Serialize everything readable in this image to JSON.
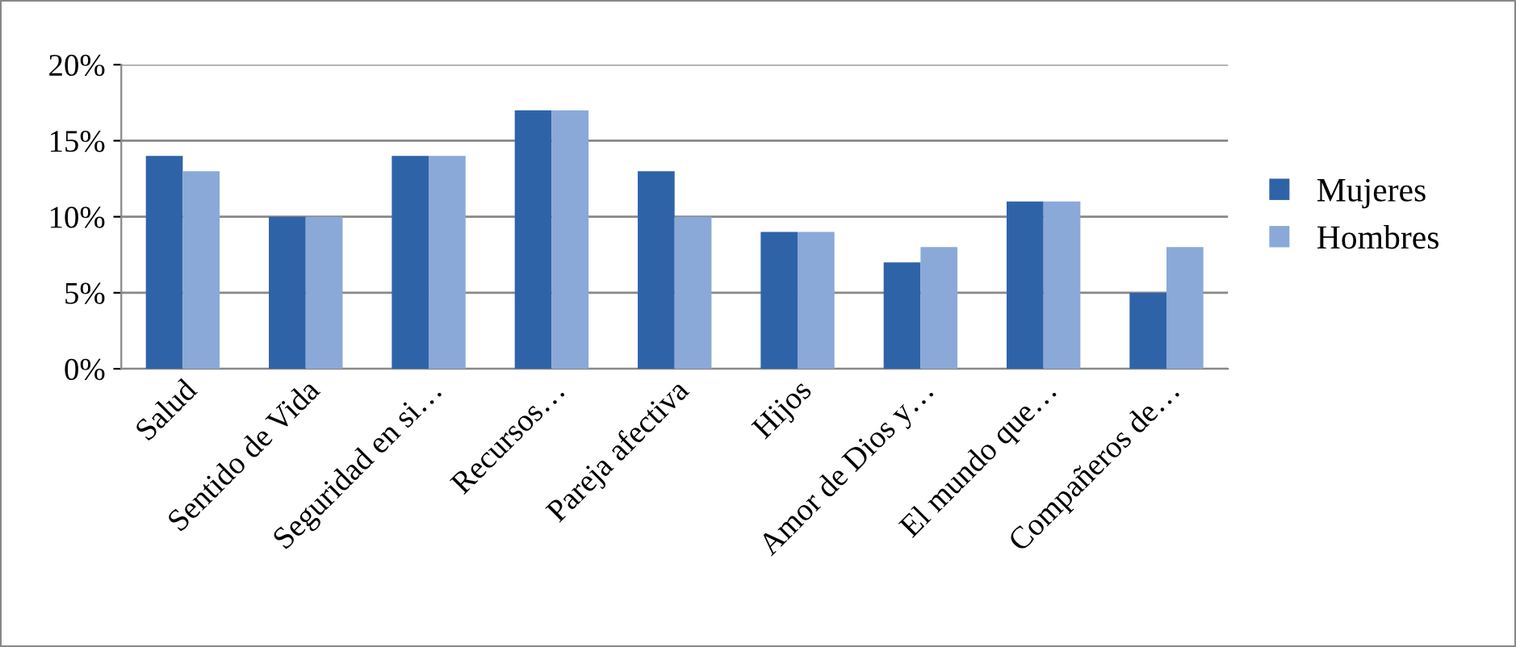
{
  "chart_data": {
    "type": "bar",
    "categories": [
      "Salud",
      "Sentido de Vida",
      "Seguridad en si…",
      "Recursos…",
      "Pareja afectiva",
      "Hijos",
      "Amor de Dios y…",
      "El mundo que…",
      "Compañeros de…"
    ],
    "series": [
      {
        "name": "Mujeres",
        "color": "#2f63a8",
        "values": [
          14,
          10,
          14,
          17,
          13,
          9,
          7,
          11,
          5
        ]
      },
      {
        "name": "Hombres",
        "color": "#8aa9d8",
        "values": [
          13,
          10,
          14,
          17,
          10,
          9,
          8,
          11,
          8
        ]
      }
    ],
    "ylim": [
      0,
      20
    ],
    "yticks": [
      {
        "value": 0,
        "label": "0%"
      },
      {
        "value": 5,
        "label": "5%"
      },
      {
        "value": 10,
        "label": "10%"
      },
      {
        "value": 15,
        "label": "15%"
      },
      {
        "value": 20,
        "label": "20%"
      }
    ],
    "grid": "y",
    "legend": "right"
  }
}
